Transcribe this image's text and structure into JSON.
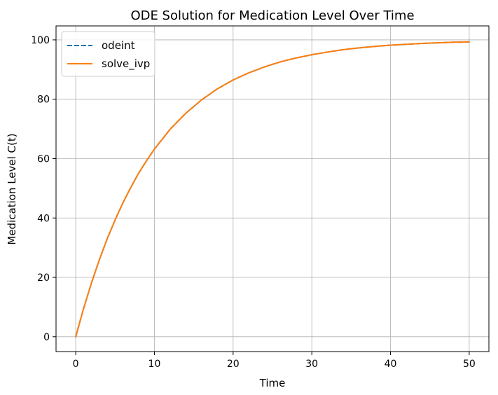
{
  "chart_data": {
    "type": "line",
    "title": "ODE Solution for Medication Level Over Time",
    "xlabel": "Time",
    "ylabel": "Medication Level C(t)",
    "xlim": [
      -2.5,
      52.5
    ],
    "ylim": [
      -5,
      104.7
    ],
    "xticks": [
      0,
      10,
      20,
      30,
      40,
      50
    ],
    "yticks": [
      0,
      20,
      40,
      60,
      80,
      100
    ],
    "grid": true,
    "legend_position": "top-left",
    "x": [
      0,
      1,
      2,
      3,
      4,
      5,
      6,
      7,
      8,
      9,
      10,
      12,
      14,
      16,
      18,
      20,
      22,
      24,
      26,
      28,
      30,
      32,
      34,
      36,
      38,
      40,
      42,
      44,
      46,
      48,
      50
    ],
    "series": [
      {
        "name": "odeint",
        "color": "#1f77b4",
        "style": "dashed",
        "values": [
          0,
          9.5,
          18.1,
          25.9,
          33.0,
          39.3,
          45.1,
          50.3,
          55.1,
          59.3,
          63.2,
          69.9,
          75.3,
          79.8,
          83.5,
          86.5,
          88.9,
          90.9,
          92.6,
          93.9,
          95.0,
          95.9,
          96.7,
          97.3,
          97.8,
          98.2,
          98.5,
          98.8,
          99.0,
          99.2,
          99.3
        ]
      },
      {
        "name": "solve_ivp",
        "color": "#ff7f0e",
        "style": "solid",
        "values": [
          0,
          9.5,
          18.1,
          25.9,
          33.0,
          39.3,
          45.1,
          50.3,
          55.1,
          59.3,
          63.2,
          69.9,
          75.3,
          79.8,
          83.5,
          86.5,
          88.9,
          90.9,
          92.6,
          93.9,
          95.0,
          95.9,
          96.7,
          97.3,
          97.8,
          98.2,
          98.5,
          98.8,
          99.0,
          99.2,
          99.3
        ]
      }
    ]
  }
}
